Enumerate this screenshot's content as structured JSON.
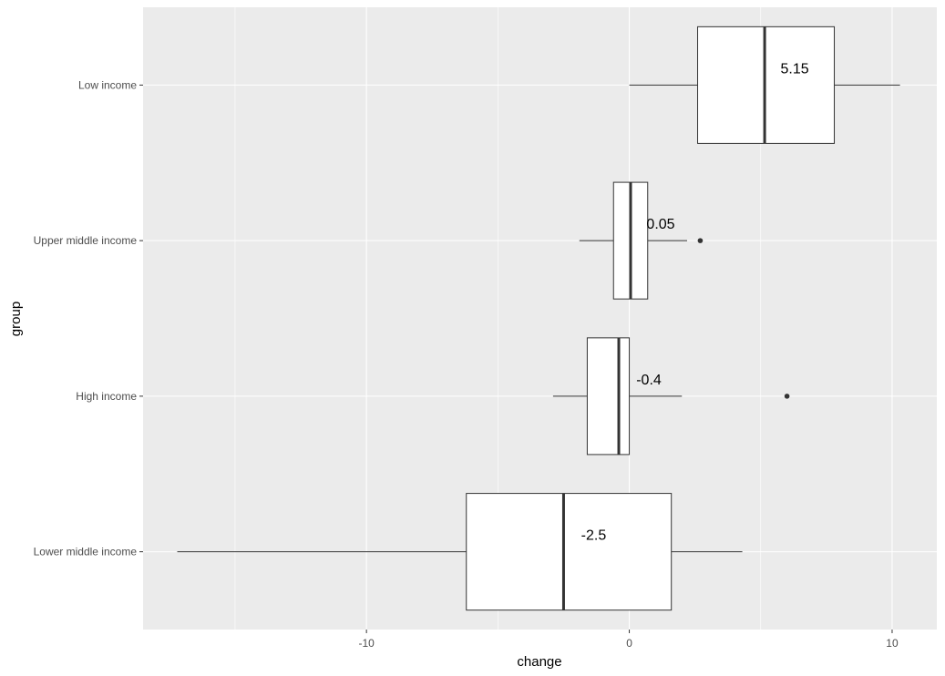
{
  "chart_data": {
    "type": "boxplot",
    "orientation": "horizontal",
    "xlabel": "change",
    "ylabel": "group",
    "xlim": [
      -18.5,
      11.7
    ],
    "x_ticks": [
      -10,
      0,
      10
    ],
    "x_minor_ticks": [
      -15,
      -5,
      5
    ],
    "grid": true,
    "categories": [
      "Lower middle income",
      "High income",
      "Upper middle income",
      "Low income"
    ],
    "boxes": [
      {
        "group": "Low income",
        "whisker_low": 0.0,
        "q1": 2.6,
        "median": 5.15,
        "q3": 7.8,
        "whisker_high": 10.3,
        "outliers": [],
        "label": "5.15"
      },
      {
        "group": "Upper middle income",
        "whisker_low": -1.9,
        "q1": -0.6,
        "median": 0.05,
        "q3": 0.7,
        "whisker_high": 2.2,
        "outliers": [
          2.7
        ],
        "label": "0.05"
      },
      {
        "group": "High income",
        "whisker_low": -2.9,
        "q1": -1.6,
        "median": -0.4,
        "q3": 0.0,
        "whisker_high": 2.0,
        "outliers": [
          6.0
        ],
        "label": "-0.4"
      },
      {
        "group": "Lower middle income",
        "whisker_low": -17.2,
        "q1": -6.2,
        "median": -2.5,
        "q3": 1.6,
        "whisker_high": 4.3,
        "outliers": [],
        "label": "-2.5"
      }
    ],
    "colors": {
      "panel": "#ebebeb",
      "grid_major": "#ffffff",
      "box_fill": "#ffffff",
      "box_stroke": "#333333",
      "tick_text": "#4d4d4d"
    }
  }
}
